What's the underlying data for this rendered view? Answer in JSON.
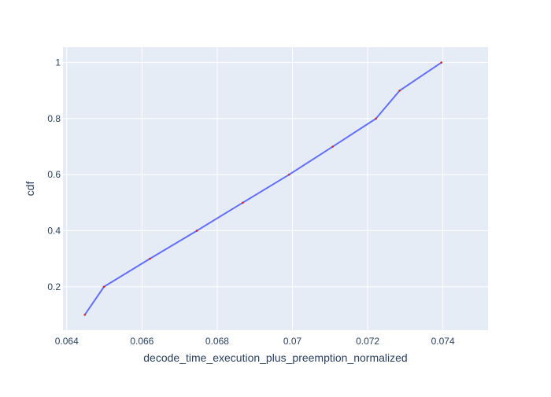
{
  "chart_data": {
    "type": "line",
    "title": "",
    "xlabel": "decode_time_execution_plus_preemption_normalized",
    "ylabel": "cdf",
    "xlim": [
      0.0639,
      0.0752
    ],
    "ylim": [
      0.045,
      1.055
    ],
    "x_ticks": [
      0.064,
      0.066,
      0.068,
      0.07,
      0.072,
      0.074
    ],
    "x_tick_labels": [
      "0.064",
      "0.066",
      "0.068",
      "0.07",
      "0.072",
      "0.074"
    ],
    "y_ticks": [
      0.2,
      0.4,
      0.6,
      0.8,
      1
    ],
    "y_tick_labels": [
      "0.2",
      "0.4",
      "0.6",
      "0.8",
      "1"
    ],
    "grid": true,
    "legend": "none",
    "series": [
      {
        "x": [
          0.06448,
          0.06499,
          0.06621,
          0.06746,
          0.06868,
          0.06991,
          0.07107,
          0.07222,
          0.07285,
          0.07396
        ],
        "y": [
          0.1,
          0.2,
          0.3,
          0.4,
          0.5,
          0.6,
          0.7,
          0.8,
          0.9,
          1.0
        ]
      }
    ],
    "colors": {
      "plot_background": "#e5ecf6",
      "grid": "#ffffff",
      "line": "#636efa",
      "marker": "#d62728",
      "text": "#2a3f5f"
    }
  }
}
